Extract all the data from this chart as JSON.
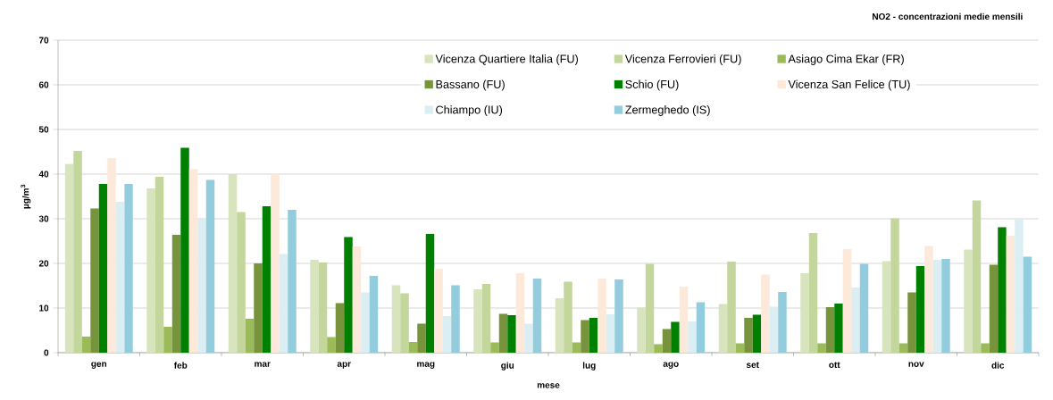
{
  "chart_data": {
    "type": "bar",
    "title": "NO2 - concentrazioni medie mensili",
    "xlabel": "mese",
    "ylabel": "µg/m$^{3}$",
    "categories": [
      "gen",
      "feb",
      "mar",
      "apr",
      "mag",
      "giu",
      "lug",
      "ago",
      "set",
      "ott",
      "nov",
      "dic"
    ],
    "series": [
      {
        "name": "Vicenza Quartiere Italia (FU)",
        "color": "#d7e4bd",
        "values": [
          42.3,
          36.8,
          40.0,
          20.8,
          15.1,
          14.2,
          12.2,
          10.1,
          10.9,
          17.8,
          20.5,
          23.1
        ]
      },
      {
        "name": "Vicenza Ferrovieri (FU)",
        "color": "#c3d69b",
        "values": [
          45.2,
          39.4,
          31.5,
          20.2,
          13.3,
          15.4,
          15.9,
          19.9,
          20.4,
          26.8,
          30.1,
          34.1
        ]
      },
      {
        "name": "Asiago Cima Ekar (FR)",
        "color": "#9bbb59",
        "values": [
          3.6,
          5.8,
          7.6,
          3.5,
          2.4,
          2.3,
          2.3,
          1.9,
          2.1,
          2.1,
          2.1,
          2.1
        ]
      },
      {
        "name": "Bassano (FU)",
        "color": "#77933c",
        "values": [
          32.3,
          26.4,
          20.0,
          11.1,
          6.5,
          8.7,
          7.3,
          5.3,
          7.8,
          10.2,
          13.5,
          19.7
        ]
      },
      {
        "name": "Schio (FU)",
        "color": "#008000",
        "values": [
          37.8,
          45.9,
          32.8,
          25.9,
          26.6,
          8.4,
          7.8,
          6.9,
          8.5,
          11.0,
          19.4,
          28.1
        ]
      },
      {
        "name": "Vicenza San Felice (TU)",
        "color": "#fde9d9",
        "values": [
          43.6,
          41.1,
          40.0,
          23.8,
          18.8,
          17.8,
          16.6,
          14.8,
          17.5,
          23.2,
          23.9,
          26.2
        ]
      },
      {
        "name": "Chiampo (IU)",
        "color": "#dbeef4",
        "values": [
          33.8,
          30.0,
          22.1,
          13.5,
          8.2,
          6.5,
          8.6,
          7.0,
          10.3,
          14.6,
          20.8,
          29.9
        ]
      },
      {
        "name": "Zermeghedo (IS)",
        "color": "#93cddd",
        "values": [
          37.8,
          38.7,
          32.0,
          17.2,
          15.1,
          16.6,
          16.4,
          11.3,
          13.6,
          19.9,
          21.0,
          21.5
        ]
      }
    ],
    "ylim": [
      0,
      70
    ],
    "yticks": [
      0,
      10,
      20,
      30,
      40,
      50,
      60,
      70
    ],
    "grid": "y",
    "legend": "top right"
  }
}
